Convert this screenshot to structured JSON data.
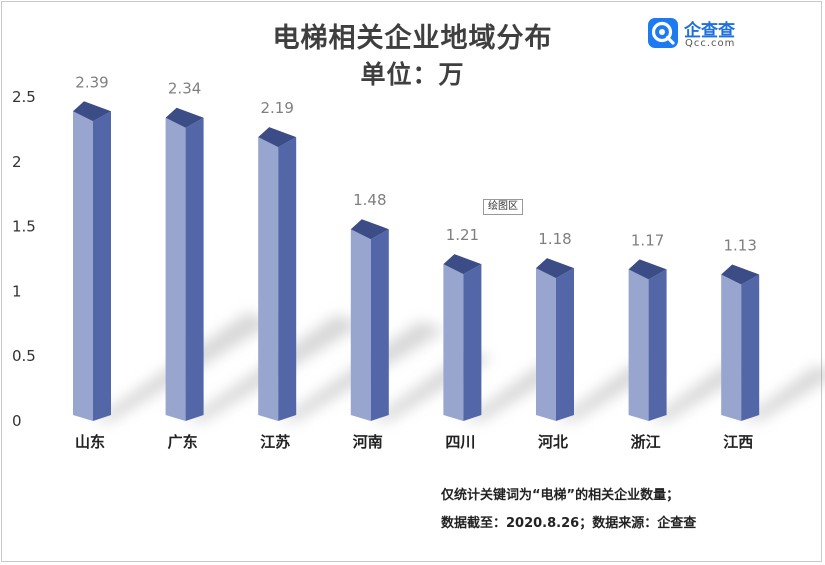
{
  "title": "电梯相关企业地域分布",
  "subtitle": "单位：万",
  "logo": {
    "name": "企查查",
    "domain": "Qcc.com",
    "icon": "qcc-logo-icon",
    "color": "#1d7bf2"
  },
  "plot_area_label": "绘图区",
  "notes": {
    "line1": "仅统计关键词为“电梯”的相关企业数量；",
    "line2": "数据截至：2020.8.26；数据来源：企查查"
  },
  "colors": {
    "bar_front": "#97A5CF",
    "bar_side": "#5266A8",
    "bar_top": "#3B4C87",
    "frame": "#c9c9c9"
  },
  "chart_data": {
    "type": "bar",
    "title": "电梯相关企业地域分布",
    "subtitle": "单位：万",
    "categories": [
      "山东",
      "广东",
      "江苏",
      "河南",
      "四川",
      "河北",
      "浙江",
      "江西"
    ],
    "values": [
      2.39,
      2.34,
      2.19,
      1.48,
      1.21,
      1.18,
      1.17,
      1.13
    ],
    "data_labels": [
      "2.39",
      "2.34",
      "2.19",
      "1.48",
      "1.21",
      "1.18",
      "1.17",
      "1.13"
    ],
    "yticks": [
      "0",
      "0.5",
      "1",
      "1.5",
      "2",
      "2.5"
    ],
    "ylim": [
      0,
      2.5
    ],
    "xlabel": "",
    "ylabel": "",
    "grid": false,
    "legend": "none",
    "style": "3d-cylinder"
  }
}
